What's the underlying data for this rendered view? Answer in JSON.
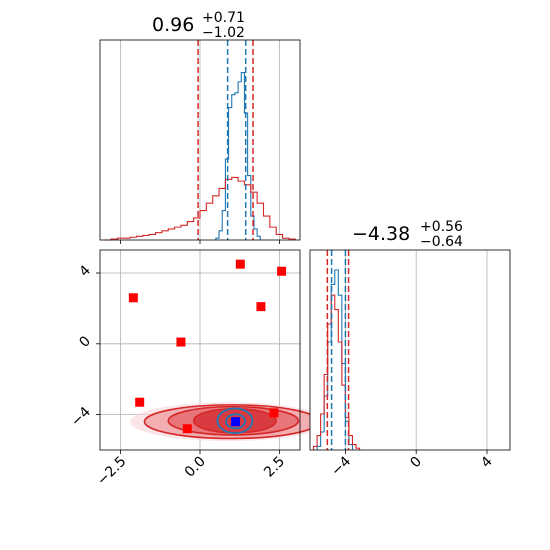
{
  "chart_data": [
    {
      "panel": "marginal",
      "type": "histogram",
      "parameter_index": 0,
      "title_main": "0.96",
      "title_sup": "+0.71",
      "title_sub": "−1.02",
      "xlim": [
        -3.15,
        3.15
      ],
      "grid": true,
      "tick_labels_shown": false,
      "quantile_lines": {
        "red": [
          -0.06,
          1.67
        ],
        "blue": [
          0.87,
          1.44
        ]
      },
      "series": [
        {
          "color": "#1f77b4",
          "bin_edges": [
            0.5,
            0.6,
            0.7,
            0.8,
            0.9,
            1.0,
            1.1,
            1.2,
            1.3,
            1.4,
            1.5,
            1.6,
            1.7,
            1.8,
            1.9
          ],
          "heights": [
            0.01,
            0.05,
            0.16,
            0.44,
            0.72,
            0.79,
            0.8,
            0.86,
            0.91,
            0.69,
            0.35,
            0.13,
            0.06,
            0.02
          ]
        },
        {
          "color": "#d62728",
          "bin_edges": [
            -3.0,
            -2.8,
            -2.6,
            -2.4,
            -2.2,
            -2.0,
            -1.8,
            -1.6,
            -1.4,
            -1.2,
            -1.0,
            -0.8,
            -0.6,
            -0.4,
            -0.2,
            0.0,
            0.2,
            0.4,
            0.6,
            0.8,
            1.0,
            1.2,
            1.4,
            1.6,
            1.8,
            2.0,
            2.2,
            2.4,
            2.6,
            2.8,
            3.0
          ],
          "heights": [
            0.0,
            0.005,
            0.01,
            0.01,
            0.015,
            0.02,
            0.025,
            0.03,
            0.04,
            0.05,
            0.06,
            0.07,
            0.08,
            0.1,
            0.12,
            0.16,
            0.2,
            0.24,
            0.28,
            0.33,
            0.34,
            0.32,
            0.3,
            0.26,
            0.2,
            0.13,
            0.07,
            0.03,
            0.01,
            0.005
          ]
        }
      ]
    },
    {
      "panel": "marginal",
      "type": "histogram",
      "parameter_index": 1,
      "title_main": "−4.38",
      "title_sup": "+0.56",
      "title_sub": "−0.64",
      "xlim": [
        -6.0,
        5.3
      ],
      "grid": true,
      "xticks": [
        -4,
        0,
        4
      ],
      "xtick_labels": [
        "−4",
        "0",
        "4"
      ],
      "quantile_lines": {
        "red": [
          -5.02,
          -3.82
        ],
        "blue": [
          -4.78,
          -4.0
        ]
      },
      "series": [
        {
          "color": "#1f77b4",
          "bin_edges": [
            -5.6,
            -5.4,
            -5.2,
            -5.0,
            -4.8,
            -4.6,
            -4.4,
            -4.2,
            -4.0,
            -3.8,
            -3.6
          ],
          "heights": [
            0.02,
            0.1,
            0.3,
            0.6,
            0.92,
            1.0,
            0.86,
            0.48,
            0.16,
            0.03
          ]
        },
        {
          "color": "#d62728",
          "bin_edges": [
            -5.8,
            -5.6,
            -5.4,
            -5.2,
            -5.0,
            -4.8,
            -4.6,
            -4.4,
            -4.2,
            -4.0,
            -3.8,
            -3.6,
            -3.4,
            -3.2
          ],
          "heights": [
            0.02,
            0.08,
            0.2,
            0.42,
            0.7,
            0.86,
            0.78,
            0.6,
            0.36,
            0.18,
            0.08,
            0.03,
            0.01
          ]
        }
      ]
    },
    {
      "panel": "joint",
      "type": "scatter",
      "xlim": [
        -3.15,
        3.15
      ],
      "ylim": [
        -6.0,
        5.3
      ],
      "grid": true,
      "xticks": [
        -2.5,
        0.0,
        2.5
      ],
      "xtick_labels": [
        "−2.5",
        "0.0",
        "2.5"
      ],
      "yticks": [
        -4,
        0,
        4
      ],
      "ytick_labels": [
        "−4",
        "0",
        "4"
      ],
      "red_square_points": [
        {
          "x": 1.27,
          "y": 4.5
        },
        {
          "x": 2.57,
          "y": 4.1
        },
        {
          "x": -2.1,
          "y": 2.6
        },
        {
          "x": 1.92,
          "y": 2.1
        },
        {
          "x": -0.6,
          "y": 0.1
        },
        {
          "x": -1.9,
          "y": -3.3
        },
        {
          "x": -0.4,
          "y": -4.8
        },
        {
          "x": 2.33,
          "y": -3.9
        }
      ],
      "blue_square_point": {
        "x": 1.12,
        "y": -4.4
      },
      "contours": [
        {
          "color": "#d62728",
          "cx": 1.0,
          "cy": -4.4,
          "rx": 2.75,
          "ry": 0.95
        },
        {
          "color": "#d62728",
          "cx": 1.05,
          "cy": -4.35,
          "rx": 2.05,
          "ry": 0.8
        },
        {
          "color": "#d62728",
          "cx": 1.1,
          "cy": -4.35,
          "rx": 1.3,
          "ry": 0.68
        },
        {
          "color": "#1f77b4",
          "cx": 1.1,
          "cy": -4.35,
          "rx": 0.55,
          "ry": 0.7
        },
        {
          "color": "#1f77b4",
          "cx": 1.12,
          "cy": -4.38,
          "rx": 0.3,
          "ry": 0.4
        }
      ]
    }
  ]
}
